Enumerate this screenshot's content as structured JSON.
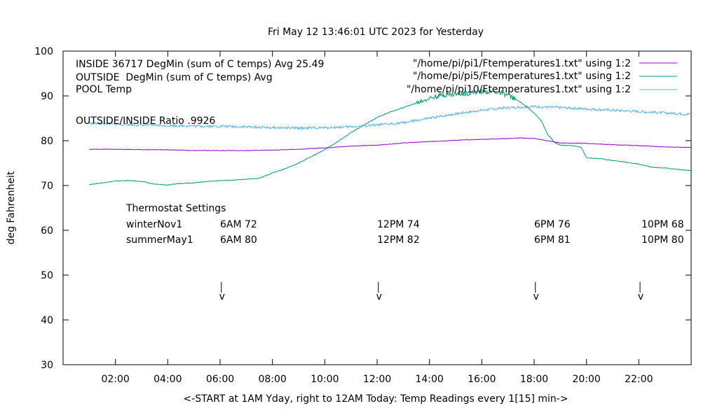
{
  "chart_data": {
    "type": "line",
    "title": "Fri May 12 13:46:01 UTC 2023 for Yesterday",
    "xlabel": "<-START at 1AM Yday, right to 12AM Today:  Temp Readings every 1[15] min->",
    "ylabel": "deg Fahrenheit",
    "xlim": [
      0.0,
      24.0
    ],
    "ylim": [
      30,
      100
    ],
    "grid": false,
    "legend_position": "top",
    "x_ticks": [
      {
        "x": 2,
        "label": "02:00"
      },
      {
        "x": 4,
        "label": "04:00"
      },
      {
        "x": 6,
        "label": "06:00"
      },
      {
        "x": 8,
        "label": "08:00"
      },
      {
        "x": 10,
        "label": "10:00"
      },
      {
        "x": 12,
        "label": "12:00"
      },
      {
        "x": 14,
        "label": "14:00"
      },
      {
        "x": 16,
        "label": "16:00"
      },
      {
        "x": 18,
        "label": "18:00"
      },
      {
        "x": 20,
        "label": "20:00"
      },
      {
        "x": 22,
        "label": "22:00"
      }
    ],
    "y_ticks": [
      {
        "y": 30,
        "label": "30"
      },
      {
        "y": 40,
        "label": "40"
      },
      {
        "y": 50,
        "label": "50"
      },
      {
        "y": 60,
        "label": "60"
      },
      {
        "y": 70,
        "label": "70"
      },
      {
        "y": 80,
        "label": "80"
      },
      {
        "y": 90,
        "label": "90"
      },
      {
        "y": 100,
        "label": "100"
      }
    ],
    "series": [
      {
        "name": "INSIDE 36717 DegMin (sum of C temps) Avg 25.49",
        "key": "\"/home/pi/pi1/Ftemperatures1.txt\" using 1:2",
        "color": "#9400d3",
        "points": [
          [
            1.0,
            78.1
          ],
          [
            2.0,
            78.1
          ],
          [
            3.0,
            78.0
          ],
          [
            4.0,
            78.0
          ],
          [
            5.0,
            77.8
          ],
          [
            6.0,
            77.8
          ],
          [
            7.0,
            77.8
          ],
          [
            8.0,
            77.9
          ],
          [
            9.0,
            78.1
          ],
          [
            10.0,
            78.4
          ],
          [
            11.0,
            78.8
          ],
          [
            12.0,
            79.0
          ],
          [
            13.0,
            79.5
          ],
          [
            14.0,
            79.8
          ],
          [
            15.0,
            80.1
          ],
          [
            16.0,
            80.3
          ],
          [
            17.0,
            80.5
          ],
          [
            17.5,
            80.6
          ],
          [
            18.0,
            80.5
          ],
          [
            18.5,
            80.0
          ],
          [
            19.0,
            79.5
          ],
          [
            20.0,
            79.4
          ],
          [
            21.0,
            79.1
          ],
          [
            22.0,
            78.9
          ],
          [
            23.0,
            78.6
          ],
          [
            24.0,
            78.5
          ]
        ]
      },
      {
        "name": "OUTSIDE  DegMin (sum of C temps) Avg",
        "key": "\"/home/pi/pi5/Ftemperatures1.txt\" using 1:2",
        "color": "#009e73",
        "points": [
          [
            1.0,
            70.2
          ],
          [
            1.5,
            70.6
          ],
          [
            2.0,
            71.0
          ],
          [
            2.5,
            71.1
          ],
          [
            3.0,
            70.9
          ],
          [
            3.5,
            70.3
          ],
          [
            4.0,
            70.1
          ],
          [
            4.5,
            70.5
          ],
          [
            5.0,
            70.6
          ],
          [
            5.5,
            70.9
          ],
          [
            6.0,
            71.1
          ],
          [
            6.5,
            71.2
          ],
          [
            7.0,
            71.4
          ],
          [
            7.5,
            71.6
          ],
          [
            8.0,
            72.8
          ],
          [
            8.5,
            73.8
          ],
          [
            9.0,
            75.0
          ],
          [
            9.5,
            76.5
          ],
          [
            10.0,
            78.0
          ],
          [
            10.5,
            79.8
          ],
          [
            11.0,
            81.8
          ],
          [
            11.5,
            83.5
          ],
          [
            12.0,
            85.2
          ],
          [
            12.5,
            86.4
          ],
          [
            13.0,
            87.4
          ],
          [
            13.5,
            88.4
          ],
          [
            14.0,
            89.5
          ],
          [
            14.5,
            90.2
          ],
          [
            15.0,
            90.4
          ],
          [
            15.5,
            90.6
          ],
          [
            16.0,
            91.0
          ],
          [
            16.5,
            90.9
          ],
          [
            17.0,
            90.2
          ],
          [
            17.5,
            88.5
          ],
          [
            18.0,
            86.2
          ],
          [
            18.3,
            84.2
          ],
          [
            18.5,
            81.5
          ],
          [
            18.8,
            79.5
          ],
          [
            19.0,
            79.0
          ],
          [
            19.5,
            78.9
          ],
          [
            19.8,
            78.5
          ],
          [
            20.0,
            76.2
          ],
          [
            20.5,
            76.0
          ],
          [
            21.0,
            75.6
          ],
          [
            21.5,
            75.2
          ],
          [
            22.0,
            74.8
          ],
          [
            22.5,
            74.1
          ],
          [
            23.0,
            73.9
          ],
          [
            23.5,
            73.6
          ],
          [
            24.0,
            73.3
          ]
        ]
      },
      {
        "name": "POOL Temp",
        "key": "\"/home/pi/pi10/Ftemperatures1.txt\" using 1:2",
        "color": "#56b4e9",
        "points": [
          [
            1.0,
            83.9
          ],
          [
            2.0,
            83.7
          ],
          [
            3.0,
            83.5
          ],
          [
            4.0,
            83.4
          ],
          [
            5.0,
            83.3
          ],
          [
            6.0,
            83.2
          ],
          [
            7.0,
            83.1
          ],
          [
            8.0,
            82.9
          ],
          [
            9.0,
            82.8
          ],
          [
            10.0,
            82.9
          ],
          [
            11.0,
            83.1
          ],
          [
            12.0,
            83.5
          ],
          [
            13.0,
            84.0
          ],
          [
            14.0,
            85.0
          ],
          [
            15.0,
            86.0
          ],
          [
            16.0,
            86.8
          ],
          [
            17.0,
            87.4
          ],
          [
            18.0,
            87.6
          ],
          [
            19.0,
            87.4
          ],
          [
            20.0,
            87.1
          ],
          [
            21.0,
            86.8
          ],
          [
            22.0,
            86.5
          ],
          [
            23.0,
            86.2
          ],
          [
            24.0,
            85.9
          ]
        ]
      }
    ],
    "annotations": {
      "ratio": "OUTSIDE/INSIDE Ratio .9926",
      "thermostat_title": "Thermostat Settings",
      "schedules": [
        {
          "name": "winterNov1",
          "settings": [
            "6AM 72",
            "12PM 74",
            "6PM 76",
            "10PM 68"
          ]
        },
        {
          "name": "summerMay1",
          "settings": [
            "6AM 80",
            "12PM 82",
            "6PM 81",
            "10PM 80"
          ]
        }
      ],
      "settings_x": [
        5.0,
        11.0,
        17.0,
        21.0
      ],
      "arrows": [
        {
          "x": 6.1,
          "glyph": "v"
        },
        {
          "x": 12.1,
          "glyph": "v"
        },
        {
          "x": 18.1,
          "glyph": "v"
        },
        {
          "x": 22.1,
          "glyph": "v"
        }
      ]
    }
  }
}
